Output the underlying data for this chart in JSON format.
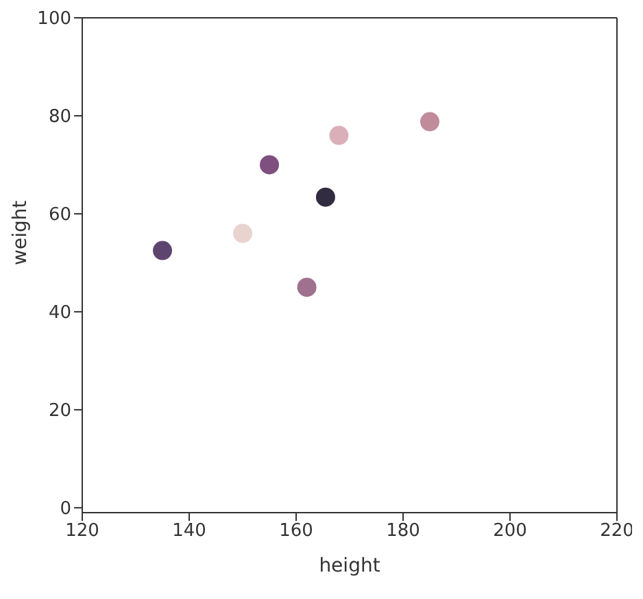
{
  "chart_data": {
    "type": "scatter",
    "xlabel": "height",
    "ylabel": "weight",
    "x": [
      135,
      150,
      155,
      162,
      165.5,
      168,
      185
    ],
    "values": [
      52.5,
      56,
      70,
      45,
      63.4,
      76,
      78.8
    ],
    "colors": [
      "#5e4570",
      "#e8d3cf",
      "#7e4f7f",
      "#a0708f",
      "#322c40",
      "#dbafb9",
      "#c08b9b"
    ],
    "xlim": [
      120,
      220
    ],
    "xticks": [
      120,
      140,
      160,
      180,
      200,
      220
    ],
    "ylim": [
      -1,
      100
    ],
    "yticks": [
      0,
      20,
      40,
      60,
      80,
      100
    ],
    "marker": "circle"
  }
}
